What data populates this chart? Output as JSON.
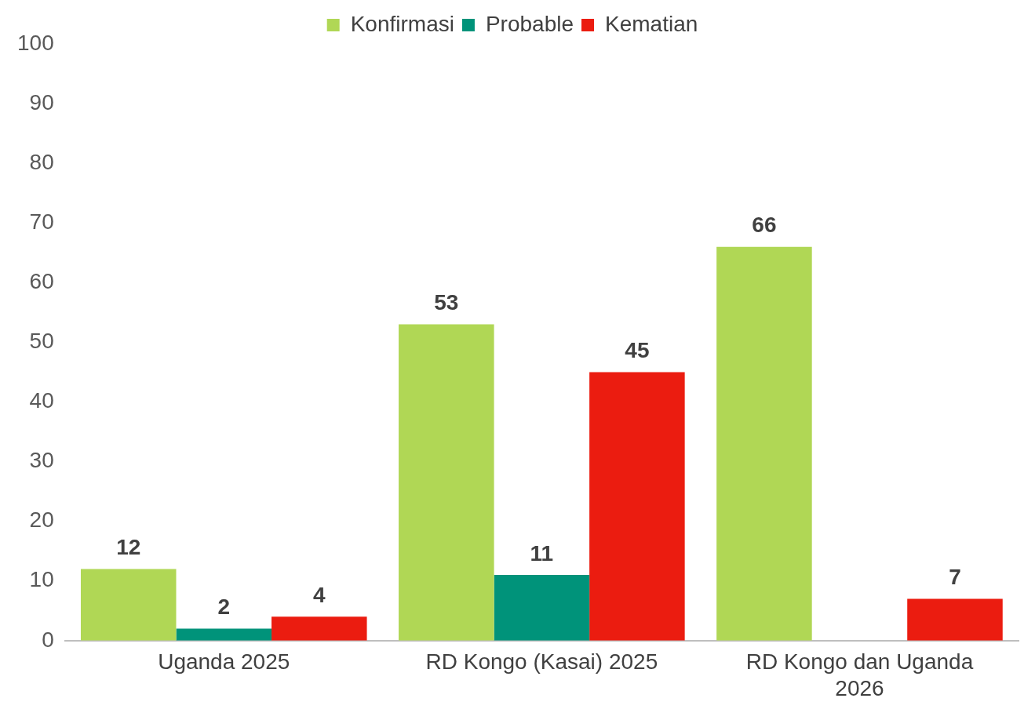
{
  "chart_data": {
    "type": "bar",
    "categories": [
      "Uganda 2025",
      "RD Kongo (Kasai) 2025",
      "RD Kongo dan Uganda 2026"
    ],
    "series": [
      {
        "name": "Konfirmasi",
        "color": "#b0d755",
        "values": [
          12,
          53,
          66
        ]
      },
      {
        "name": "Probable",
        "color": "#00937a",
        "values": [
          2,
          11,
          null
        ]
      },
      {
        "name": "Kematian",
        "color": "#eb1c10",
        "values": [
          4,
          45,
          7
        ]
      }
    ],
    "ylim": [
      0,
      100
    ],
    "yticks": [
      0,
      10,
      20,
      30,
      40,
      50,
      60,
      70,
      80,
      90,
      100
    ],
    "grid": false,
    "legend": "top",
    "data_labels": true
  }
}
